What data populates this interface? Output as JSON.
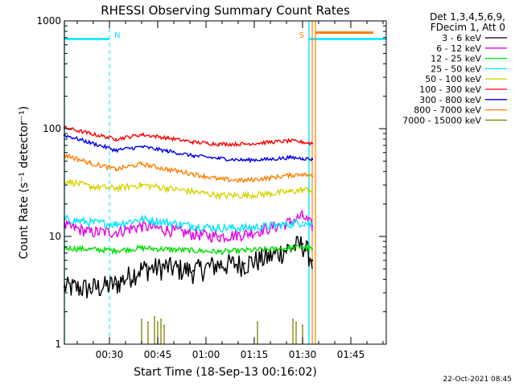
{
  "chart_data": {
    "type": "line",
    "title": "RHESSI Observing Summary Count Rates",
    "xlabel": "Start Time (18-Sep-13 00:16:02)",
    "ylabel": "Count Rate (s⁻¹ detector⁻¹)",
    "yscale": "log",
    "ylim": [
      1,
      1000
    ],
    "yticks": [
      {
        "value": 1,
        "label": "1"
      },
      {
        "value": 10,
        "label": "10"
      },
      {
        "value": 100,
        "label": "100"
      },
      {
        "value": 1000,
        "label": "1000"
      }
    ],
    "x_units": "minutes after 00:16:02",
    "xlim": [
      0,
      100
    ],
    "xticks": [
      {
        "value": 14,
        "label": "00:30"
      },
      {
        "value": 29,
        "label": "00:45"
      },
      {
        "value": 44,
        "label": "01:00"
      },
      {
        "value": 59,
        "label": "01:15"
      },
      {
        "value": 74,
        "label": "01:30"
      },
      {
        "value": 89,
        "label": "01:45"
      }
    ],
    "legend": {
      "placement": "right",
      "header": [
        "Det 1,3,4,5,6,9,",
        "FDecim 1, Att 0"
      ]
    },
    "series": [
      {
        "name": "3 - 6 keV",
        "color": "#000000",
        "x": [
          0,
          8,
          16,
          24,
          32,
          40,
          48,
          56,
          64,
          70,
          74,
          77
        ],
        "values": [
          3.4,
          3.3,
          3.6,
          5.0,
          5.2,
          4.8,
          5.5,
          5.6,
          6.5,
          7.8,
          8.5,
          6.0
        ]
      },
      {
        "name": "6 - 12 keV",
        "color": "#e600e6",
        "x": [
          0,
          8,
          16,
          24,
          32,
          40,
          48,
          56,
          64,
          70,
          74,
          77
        ],
        "values": [
          12.5,
          11.0,
          11.0,
          12.5,
          11.5,
          10.5,
          10.0,
          10.5,
          12.0,
          13.5,
          15.5,
          12.5
        ]
      },
      {
        "name": "12 - 25 keV",
        "color": "#00dd00",
        "x": [
          0,
          8,
          16,
          24,
          32,
          40,
          48,
          56,
          64,
          70,
          74,
          77
        ],
        "values": [
          7.8,
          7.6,
          7.4,
          7.8,
          7.6,
          7.4,
          7.2,
          7.4,
          7.6,
          7.8,
          8.0,
          7.6
        ]
      },
      {
        "name": "25 - 50 keV",
        "color": "#00e5ff",
        "x": [
          0,
          8,
          16,
          24,
          32,
          40,
          48,
          56,
          64,
          70,
          74,
          77
        ],
        "values": [
          14.5,
          13.5,
          13.0,
          14.5,
          13.5,
          12.5,
          12.0,
          12.0,
          12.5,
          13.0,
          13.5,
          13.0
        ]
      },
      {
        "name": "50 - 100 keV",
        "color": "#d4d400",
        "x": [
          0,
          8,
          16,
          24,
          32,
          40,
          48,
          56,
          64,
          70,
          74,
          77
        ],
        "values": [
          33,
          29,
          28,
          30,
          28,
          26,
          24,
          24,
          25,
          26,
          27,
          27
        ]
      },
      {
        "name": "100 - 300 keV",
        "color": "#ff0000",
        "x": [
          0,
          8,
          16,
          24,
          32,
          40,
          48,
          56,
          64,
          70,
          74,
          77
        ],
        "values": [
          102,
          90,
          80,
          88,
          82,
          75,
          72,
          72,
          75,
          77,
          75,
          73
        ]
      },
      {
        "name": "300 - 800 keV",
        "color": "#0000e6",
        "x": [
          0,
          8,
          16,
          24,
          32,
          40,
          48,
          56,
          64,
          70,
          74,
          77
        ],
        "values": [
          87,
          74,
          63,
          68,
          62,
          56,
          53,
          51,
          52,
          54,
          53,
          52
        ]
      },
      {
        "name": "800 - 7000 keV",
        "color": "#ff8000",
        "x": [
          0,
          8,
          16,
          24,
          32,
          40,
          48,
          56,
          64,
          70,
          74,
          77,
          78,
          96
        ],
        "values": [
          57,
          48,
          42,
          47,
          42,
          38,
          34,
          33,
          35,
          37,
          38,
          36,
          780,
          780
        ]
      },
      {
        "name": "7000 - 15000 keV",
        "color": "#808000",
        "x": [
          24,
          26,
          28,
          29,
          30,
          31,
          60,
          71,
          72,
          74
        ],
        "values": [
          1.7,
          1.6,
          1.8,
          1.6,
          1.7,
          1.5,
          1.6,
          1.7,
          1.6,
          1.5
        ]
      }
    ],
    "annotations": [
      {
        "text": "N",
        "color": "#00e5ff",
        "x": 14
      },
      {
        "text": "S",
        "color": "#ff8000",
        "x": 76
      }
    ],
    "markers": {
      "saa_color": "#00e5ff",
      "saa_dashed_x": [
        14,
        100
      ],
      "saa_solid_x": [
        0,
        76
      ],
      "saa_bars": [
        [
          0,
          14
        ],
        [
          76,
          100
        ]
      ],
      "saa_level": 680,
      "attenuator_lines_x": [
        77,
        78
      ]
    }
  },
  "footer": {
    "timestamp": "22-Oct-2021 08:45"
  }
}
